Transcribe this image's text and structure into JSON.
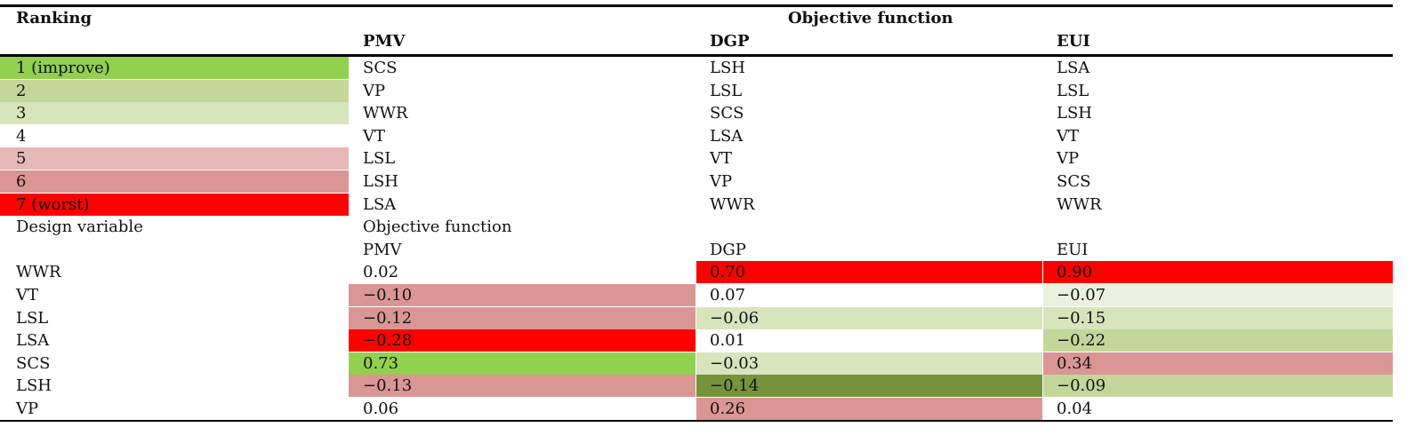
{
  "header": {
    "ranking": "Ranking",
    "objective_function": "Objective function",
    "columns": [
      "PMV",
      "DGP",
      "EUI"
    ]
  },
  "ranking_table": {
    "rows": [
      {
        "rank": "1 (improve)",
        "color": "#92d050",
        "cells": [
          "SCS",
          "LSH",
          "LSA"
        ]
      },
      {
        "rank": "2",
        "color": "#c4d79b",
        "cells": [
          "VP",
          "LSL",
          "LSL"
        ]
      },
      {
        "rank": "3",
        "color": "#d8e4bc",
        "cells": [
          "WWR",
          "SCS",
          "LSH"
        ]
      },
      {
        "rank": "4",
        "color": "#ffffff",
        "cells": [
          "VT",
          "LSA",
          "VT"
        ]
      },
      {
        "rank": "5",
        "color": "#e6b8b7",
        "cells": [
          "LSL",
          "VT",
          "VP"
        ]
      },
      {
        "rank": "6",
        "color": "#da9694",
        "cells": [
          "LSH",
          "VP",
          "SCS"
        ]
      },
      {
        "rank": "7 (worst)",
        "color": "#ff0000",
        "cells": [
          "LSA",
          "WWR",
          "WWR"
        ]
      }
    ]
  },
  "correlation_table": {
    "header": "Design variable",
    "group": "Objective function",
    "columns": [
      "PMV",
      "DGP",
      "EUI"
    ],
    "rows": [
      {
        "variable": "WWR",
        "cells": [
          "0.02",
          "0.70",
          "0.90"
        ],
        "colors": [
          "#ffffff",
          "#ff0000",
          "#ff0000"
        ]
      },
      {
        "variable": "VT",
        "cells": [
          "−0.10",
          "0.07",
          "−0.07"
        ],
        "colors": [
          "#da9694",
          "#ffffff",
          "#ebf1de"
        ]
      },
      {
        "variable": "LSL",
        "cells": [
          "−0.12",
          "−0.06",
          "−0.15"
        ],
        "colors": [
          "#da9694",
          "#d8e4bc",
          "#d8e4bc"
        ]
      },
      {
        "variable": "LSA",
        "cells": [
          "−0.28",
          "0.01",
          "−0.22"
        ],
        "colors": [
          "#ff0000",
          "#ffffff",
          "#c4d79b"
        ]
      },
      {
        "variable": "SCS",
        "cells": [
          "0.73",
          "−0.03",
          "0.34"
        ],
        "colors": [
          "#92d050",
          "#d8e4bc",
          "#da9694"
        ]
      },
      {
        "variable": "LSH",
        "cells": [
          "−0.13",
          "−0.14",
          "−0.09"
        ],
        "colors": [
          "#da9694",
          "#76933c",
          "#c4d79b"
        ]
      },
      {
        "variable": "VP",
        "cells": [
          "0.06",
          "0.26",
          "0.04"
        ],
        "colors": [
          "#ffffff",
          "#da9694",
          "#ffffff"
        ]
      }
    ]
  }
}
